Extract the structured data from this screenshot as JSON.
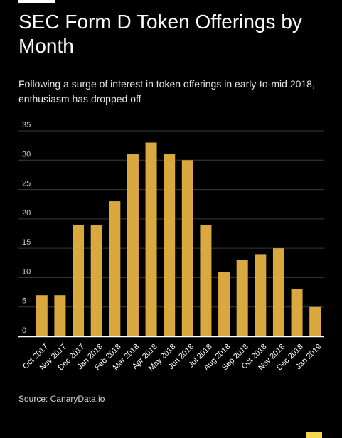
{
  "header": {
    "title": "SEC Form D Token Offerings by Month",
    "subtitle": "Following a surge of interest in token offerings in early-to-mid 2018, enthusiasm has dropped off"
  },
  "footer": {
    "source": "Source: CanaryData.io"
  },
  "colors": {
    "background": "#000000",
    "bar": "#d9a93f",
    "gridline": "#3a3a3a",
    "axis": "#ffffff",
    "text": "#ffffff"
  },
  "chart_data": {
    "type": "bar",
    "categories": [
      "Oct 2017",
      "Nov 2017",
      "Dec 2017",
      "Jan 2018",
      "Feb 2018",
      "Mar 2018",
      "Apr 2018",
      "May 2018",
      "Jun 2018",
      "Jul 2018",
      "Aug 2018",
      "Sep 2018",
      "Oct 2018",
      "Nov 2018",
      "Dec 2018",
      "Jan 2019"
    ],
    "values": [
      7,
      7,
      19,
      19,
      23,
      31,
      33,
      31,
      30,
      19,
      11,
      13,
      14,
      15,
      8,
      5
    ],
    "yticks": [
      0,
      5,
      10,
      15,
      20,
      25,
      30,
      35
    ],
    "ylim": [
      0,
      35
    ],
    "grid": true,
    "legend": "none"
  }
}
